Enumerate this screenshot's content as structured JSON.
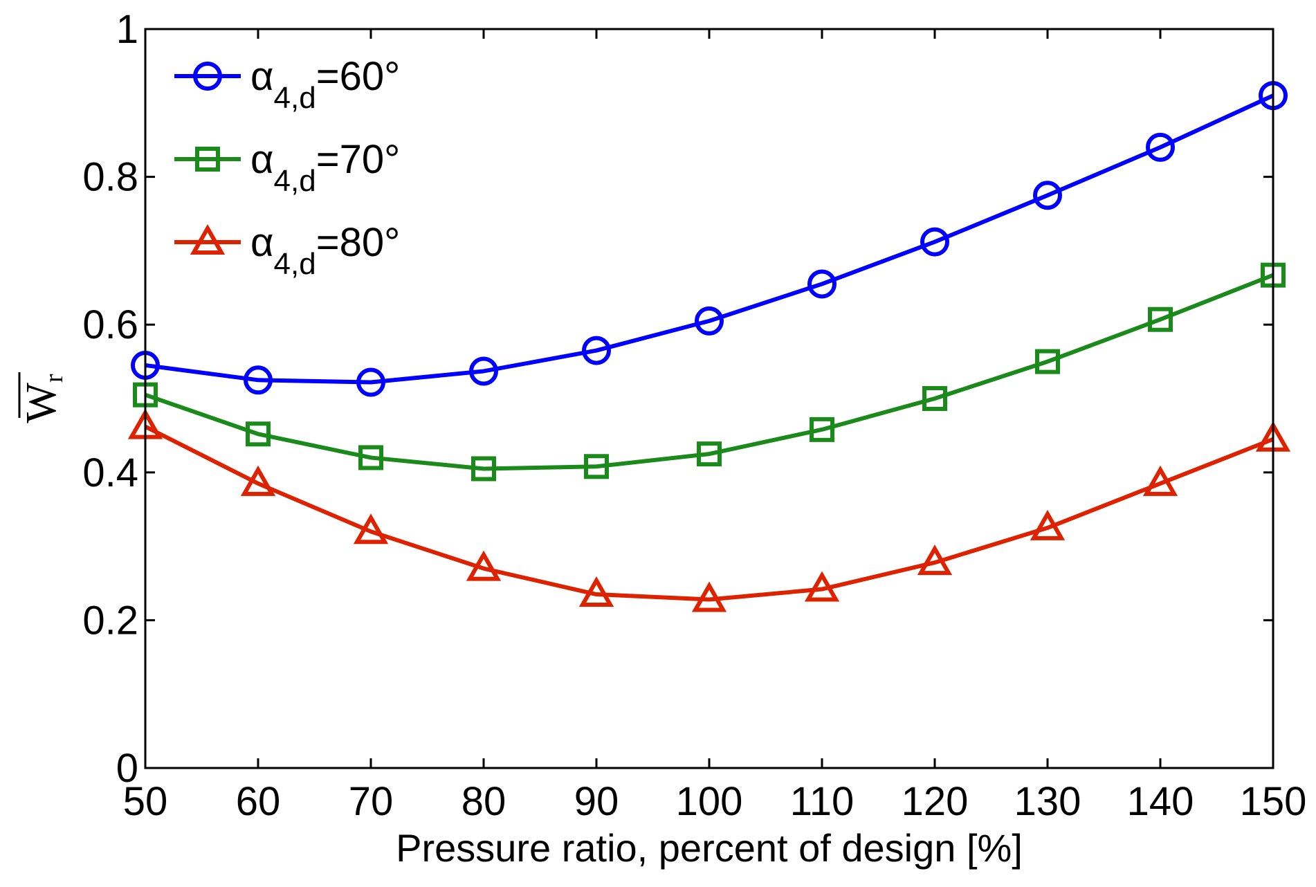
{
  "chart_data": {
    "type": "line",
    "title": "",
    "xlabel": "Pressure ratio, percent of design [%]",
    "ylabel": "W",
    "ylabel_sub": "r",
    "xlim": [
      50,
      150
    ],
    "ylim": [
      0,
      1
    ],
    "xticks": [
      50,
      60,
      70,
      80,
      90,
      100,
      110,
      120,
      130,
      140,
      150
    ],
    "yticks": [
      0,
      0.2,
      0.4,
      0.6,
      0.8,
      1
    ],
    "ytick_labels": [
      "0",
      "0.2",
      "0.4",
      "0.6",
      "0.8",
      "1"
    ],
    "x": [
      50,
      60,
      70,
      80,
      90,
      100,
      110,
      120,
      130,
      140,
      150
    ],
    "series": [
      {
        "name": "α4,d=60°",
        "label_greek": "α",
        "label_sub": "4,d",
        "label_rest": "=60°",
        "color": "#0000ff",
        "marker": "circle",
        "values": [
          0.545,
          0.525,
          0.522,
          0.537,
          0.565,
          0.605,
          0.655,
          0.712,
          0.775,
          0.84,
          0.91
        ]
      },
      {
        "name": "α4,d=70°",
        "label_greek": "α",
        "label_sub": "4,d",
        "label_rest": "=70°",
        "color": "#1a8a1a",
        "marker": "square",
        "values": [
          0.505,
          0.452,
          0.42,
          0.405,
          0.408,
          0.425,
          0.458,
          0.5,
          0.55,
          0.607,
          0.667
        ]
      },
      {
        "name": "α4,d=80°",
        "label_greek": "α",
        "label_sub": "4,d",
        "label_rest": "=80°",
        "color": "#dd2200",
        "marker": "triangle",
        "values": [
          0.462,
          0.385,
          0.32,
          0.27,
          0.235,
          0.228,
          0.242,
          0.278,
          0.325,
          0.385,
          0.445
        ]
      }
    ],
    "legend_position": "top-left",
    "grid": false
  }
}
